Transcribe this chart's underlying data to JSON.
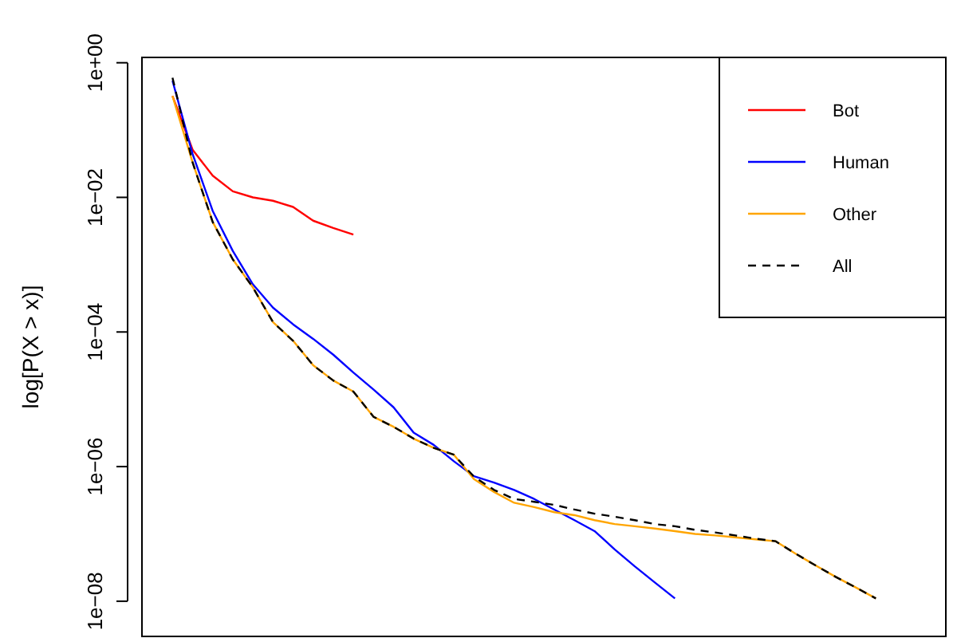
{
  "chart_data": {
    "type": "line",
    "ylabel": "log[P(X > x)]",
    "log": "y",
    "ylim": [
      3e-09,
      1.2
    ],
    "categories": [
      null,
      null,
      null,
      null,
      null,
      null,
      null,
      null,
      null,
      null,
      null,
      null,
      null,
      null,
      null,
      null,
      null,
      null,
      null,
      null,
      null,
      null,
      null,
      null,
      null,
      null,
      null,
      null,
      null,
      null,
      null,
      null,
      null,
      null,
      null,
      null
    ],
    "yticks": [
      {
        "value": 1,
        "label": "1e+00"
      },
      {
        "value": 0.01,
        "label": "1e−02"
      },
      {
        "value": 0.0001,
        "label": "1e−04"
      },
      {
        "value": 1e-06,
        "label": "1e−06"
      },
      {
        "value": 1e-08,
        "label": "1e−08"
      }
    ],
    "tick_labels": "y",
    "grid": false,
    "legend": "top right",
    "line_style": "solid",
    "marker": "none",
    "series": [
      {
        "name": "Bot",
        "color": "#ff0000",
        "values": [
          0.32,
          0.051,
          0.021,
          0.0123,
          0.01,
          0.0089,
          0.0072,
          0.0045,
          0.0035,
          0.0028,
          null,
          null,
          null,
          null,
          null,
          null,
          null,
          null,
          null,
          null,
          null,
          null,
          null,
          null,
          null,
          null,
          null,
          null,
          null,
          null,
          null,
          null,
          null,
          null,
          null,
          null
        ]
      },
      {
        "name": "Human",
        "color": "#0000ff",
        "values": [
          0.54,
          0.044,
          0.0063,
          0.0016,
          0.00051,
          0.00023,
          0.00013,
          7.9e-05,
          4.6e-05,
          2.5e-05,
          1.4e-05,
          7.6e-06,
          3.2e-06,
          2.1e-06,
          1.2e-06,
          7.2e-07,
          5.8e-07,
          4.5e-07,
          3.3e-07,
          2.3e-07,
          1.6e-07,
          1.1e-07,
          5.9e-08,
          3.3e-08,
          1.9e-08,
          1.1e-08,
          null,
          null,
          null,
          null,
          null,
          null,
          null,
          null,
          null,
          null
        ]
      },
      {
        "name": "Other",
        "color": "#ffa500",
        "values": [
          0.32,
          0.033,
          0.0043,
          0.0012,
          0.00046,
          0.00014,
          7.4e-05,
          3.2e-05,
          1.9e-05,
          1.3e-05,
          5.5e-06,
          3.9e-06,
          2.6e-06,
          1.9e-06,
          1.5e-06,
          6.5e-07,
          4.2e-07,
          2.9e-07,
          2.5e-07,
          2.1e-07,
          1.9e-07,
          1.6e-07,
          1.4e-07,
          1.3e-07,
          1.2e-07,
          1.1e-07,
          1e-07,
          9.5e-08,
          8.9e-08,
          8.3e-08,
          7.8e-08,
          5.1e-08,
          3.4e-08,
          2.3e-08,
          1.6e-08,
          1.1e-08
        ]
      },
      {
        "name": "All",
        "color": "#000000",
        "line_style": "dashed",
        "values": [
          0.6,
          0.033,
          0.0043,
          0.0012,
          0.00046,
          0.00014,
          7.4e-05,
          3.2e-05,
          1.9e-05,
          1.3e-05,
          5.5e-06,
          3.9e-06,
          2.6e-06,
          1.9e-06,
          1.5e-06,
          7.1e-07,
          4.5e-07,
          3.3e-07,
          3e-07,
          2.7e-07,
          2.3e-07,
          2e-07,
          1.8e-07,
          1.6e-07,
          1.4e-07,
          1.3e-07,
          1.15e-07,
          1.05e-07,
          9.5e-08,
          8.5e-08,
          7.8e-08,
          5.1e-08,
          3.4e-08,
          2.3e-08,
          1.6e-08,
          1.1e-08
        ]
      }
    ]
  }
}
